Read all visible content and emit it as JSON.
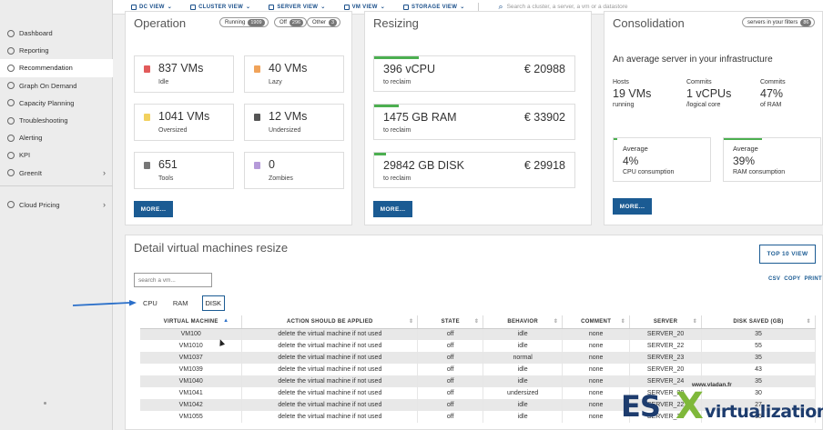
{
  "topnav": {
    "items": [
      "DC VIEW",
      "CLUSTER VIEW",
      "SERVER VIEW",
      "VM VIEW",
      "STORAGE VIEW"
    ],
    "search_placeholder": "Search a cluster, a server, a vm or a datastore"
  },
  "sidebar": {
    "items": [
      {
        "label": "Dashboard",
        "icon": "dashboard-icon"
      },
      {
        "label": "Reporting",
        "icon": "reporting-icon"
      },
      {
        "label": "Recommendation",
        "icon": "recommendation-icon",
        "active": true
      },
      {
        "label": "Graph On Demand",
        "icon": "graph-icon"
      },
      {
        "label": "Capacity Planning",
        "icon": "capacity-icon"
      },
      {
        "label": "Troubleshooting",
        "icon": "troubleshooting-icon"
      },
      {
        "label": "Alerting",
        "icon": "bell-icon"
      },
      {
        "label": "KPI",
        "icon": "kpi-icon"
      },
      {
        "label": "GreenIt",
        "icon": "leaf-icon",
        "chevron": true
      }
    ],
    "secondary": [
      {
        "label": "Cloud Pricing",
        "icon": "cloud-icon",
        "chevron": true
      }
    ]
  },
  "operation": {
    "title": "Operation",
    "pills": [
      {
        "label": "Running",
        "count": "1909"
      },
      {
        "label": "Off",
        "count": "296"
      },
      {
        "label": "Other",
        "count": "3"
      }
    ],
    "tiles": [
      {
        "value": "837 VMs",
        "label": "Idle",
        "color": "#e25b5b"
      },
      {
        "value": "40 VMs",
        "label": "Lazy",
        "color": "#f0a35a"
      },
      {
        "value": "1041 VMs",
        "label": "Oversized",
        "color": "#f2d15e"
      },
      {
        "value": "12 VMs",
        "label": "Undersized",
        "color": "#555555"
      },
      {
        "value": "651",
        "label": "Tools",
        "color": "#777777"
      },
      {
        "value": "0",
        "label": "Zombies",
        "color": "#b59ad9"
      }
    ],
    "more_label": "MORE..."
  },
  "resizing": {
    "title": "Resizing",
    "tiles": [
      {
        "value": "396 vCPU",
        "price": "€ 20988",
        "label": "to reclaim",
        "bar": 0.22
      },
      {
        "value": "1475 GB RAM",
        "price": "€ 33902",
        "label": "to reclaim",
        "bar": 0.12
      },
      {
        "value": "29842 GB DISK",
        "price": "€ 29918",
        "label": "to reclaim",
        "bar": 0.06
      }
    ],
    "more_label": "MORE..."
  },
  "consolidation": {
    "title": "Consolidation",
    "filter_pill": {
      "label": "servers in your filters",
      "count": "86"
    },
    "subtitle": "An average server in your infrastructure",
    "stats": [
      {
        "title": "Hosts",
        "value": "19 VMs",
        "sub": "running"
      },
      {
        "title": "Commits",
        "value": "1 vCPUs",
        "sub": "/logical core"
      },
      {
        "title": "Commits",
        "value": "47%",
        "sub": "of RAM"
      }
    ],
    "averages": [
      {
        "title": "Average",
        "value": "4%",
        "sub": "CPU consumption",
        "bar": 0.04
      },
      {
        "title": "Average",
        "value": "39%",
        "sub": "RAM consumption",
        "bar": 0.39
      }
    ],
    "more_label": "MORE..."
  },
  "detail": {
    "title": "Detail virtual machines resize",
    "top10_label": "TOP 10 VIEW",
    "search_placeholder": "search a vm...",
    "links": [
      "CSV",
      "COPY",
      "PRINT"
    ],
    "tabs": [
      "CPU",
      "RAM",
      "DISK"
    ],
    "active_tab": "DISK",
    "columns": [
      "VIRTUAL MACHINE",
      "ACTION SHOULD BE APPLIED",
      "STATE",
      "BEHAVIOR",
      "COMMENT",
      "SERVER",
      "DISK SAVED (GB)"
    ],
    "rows": [
      [
        "VM100",
        "delete the virtual machine if not used",
        "off",
        "idle",
        "none",
        "SERVER_20",
        "35"
      ],
      [
        "VM1010",
        "delete the virtual machine if not used",
        "off",
        "idle",
        "none",
        "SERVER_22",
        "55"
      ],
      [
        "VM1037",
        "delete the virtual machine if not used",
        "off",
        "normal",
        "none",
        "SERVER_23",
        "35"
      ],
      [
        "VM1039",
        "delete the virtual machine if not used",
        "off",
        "idle",
        "none",
        "SERVER_20",
        "43"
      ],
      [
        "VM1040",
        "delete the virtual machine if not used",
        "off",
        "idle",
        "none",
        "SERVER_24",
        "35"
      ],
      [
        "VM1041",
        "delete the virtual machine if not used",
        "off",
        "undersized",
        "none",
        "SERVER_20",
        "30"
      ],
      [
        "VM1042",
        "delete the virtual machine if not used",
        "off",
        "idle",
        "none",
        "SERVER_22",
        "27"
      ],
      [
        "VM1055",
        "delete the virtual machine if not used",
        "off",
        "idle",
        "none",
        "SERVER_21",
        "35"
      ]
    ]
  },
  "watermark": {
    "site": "www.vladan.fr",
    "es": "ES",
    "x": "X",
    "virt": "virtualization"
  }
}
